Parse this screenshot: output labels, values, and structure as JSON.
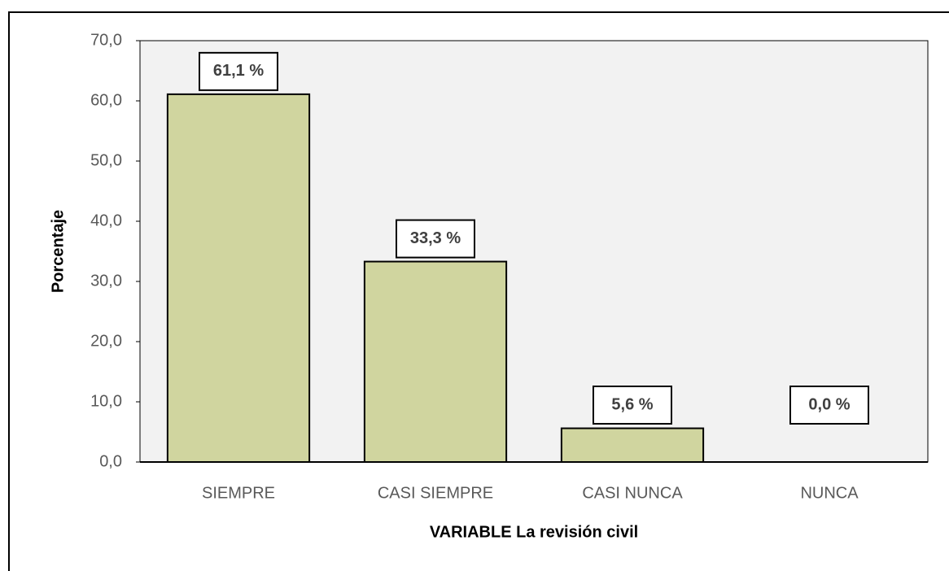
{
  "chart_data": {
    "type": "bar",
    "categories": [
      "SIEMPRE",
      "CASI SIEMPRE",
      "CASI NUNCA",
      "NUNCA"
    ],
    "values": [
      61.1,
      33.3,
      5.6,
      0.0
    ],
    "value_labels": [
      "61,1 %",
      "33,3 %",
      "5,6 %",
      "0,0 %"
    ],
    "color": "#d0d59f",
    "x_label": "VARIABLE La revisión civil",
    "y_label": "Porcentaje",
    "ylim": [
      0,
      70
    ],
    "yticks": [
      {
        "value": 0,
        "label": "0,0"
      },
      {
        "value": 10,
        "label": "10,0"
      },
      {
        "value": 20,
        "label": "20,0"
      },
      {
        "value": 30,
        "label": "30,0"
      },
      {
        "value": 40,
        "label": "40,0"
      },
      {
        "value": 50,
        "label": "50,0"
      },
      {
        "value": 60,
        "label": "60,0"
      },
      {
        "value": 70,
        "label": "70,0"
      }
    ]
  }
}
